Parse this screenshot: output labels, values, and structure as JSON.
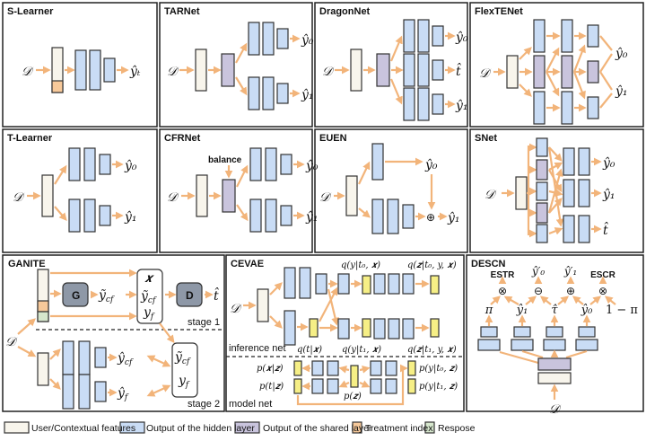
{
  "colors": {
    "feature": "#f8f5ec",
    "hidden": "#c9dcf5",
    "shared": "#c9c4dd",
    "treatment": "#f7c99a",
    "response": "#d6e7cd",
    "arrow": "#f2b47a",
    "yellow": "#f6ef86",
    "gray_box": "#8e98a7",
    "border": "#333333"
  },
  "input_symbol": "𝒟",
  "panels": {
    "s_learner": {
      "title": "S-Learner",
      "output": "ŷₜ"
    },
    "tarnet": {
      "title": "TARNet",
      "outputs": [
        "ŷ₀",
        "ŷ₁"
      ]
    },
    "dragonnet": {
      "title": "DragonNet",
      "outputs": [
        "ŷ₀",
        "t̂",
        "ŷ₁"
      ]
    },
    "flextenet": {
      "title": "FlexTENet",
      "outputs": [
        "ŷ₀",
        "ŷ₁"
      ]
    },
    "t_learner": {
      "title": "T-Learner",
      "outputs": [
        "ŷ₀",
        "ŷ₁"
      ]
    },
    "cfrnet": {
      "title": "CFRNet",
      "balance_label": "balance",
      "outputs": [
        "ŷ₀",
        "ŷ₁"
      ]
    },
    "euen": {
      "title": "EUEN",
      "outputs": [
        "ŷ₀",
        "ŷ₁"
      ],
      "op": "⊕"
    },
    "snet": {
      "title": "SNet",
      "outputs": [
        "ŷ₀",
        "ŷ₁",
        "t̂"
      ]
    },
    "ganite": {
      "title": "GANITE",
      "generator": "G",
      "discriminator": "D",
      "y_tilde_cf": {
        "base": "ỹ",
        "sub": "cf"
      },
      "x": "𝒙",
      "y_f": {
        "base": "y",
        "sub": "f"
      },
      "t_hat": "t̂",
      "y_hat_cf": {
        "base": "ŷ",
        "sub": "cf"
      },
      "y_hat_f": {
        "base": "ŷ",
        "sub": "f"
      },
      "stage1": "stage 1",
      "stage2": "stage 2"
    },
    "cevae": {
      "title": "CEVAE",
      "inference_labels": [
        "q(y|t₀, 𝒙)",
        "q(𝒛|t₀, y, 𝒙)",
        "q(t|𝒙)",
        "q(y|t₁, 𝒙)",
        "q(𝒛|t₁, y, 𝒙)"
      ],
      "inference_net": "inference net",
      "model_labels": [
        "p(𝒙|𝒛)",
        "p(t|𝒛)",
        "p(𝒛)",
        "p(y|t₀, 𝒛)",
        "p(y|t₁, 𝒛)"
      ],
      "model_net": "model net"
    },
    "descn": {
      "title": "DESCN",
      "top_labels": [
        "ESTR",
        "ŷ′₀",
        "ŷ′₁",
        "ESCR"
      ],
      "ops": [
        "⊗",
        "⊖",
        "⊕",
        "⊗"
      ],
      "mid_labels": [
        "π",
        "ŷ₁",
        "τ̂",
        "ŷ₀",
        "1 − π"
      ]
    }
  },
  "legend": [
    {
      "kind": "feature",
      "label": "User/Contextual features"
    },
    {
      "kind": "hidden",
      "label": "Output of the hidden layer"
    },
    {
      "kind": "shared",
      "label": "Output of the shared layer"
    },
    {
      "kind": "treatment",
      "label": "Treatment index"
    },
    {
      "kind": "response",
      "label": "Respose"
    }
  ]
}
